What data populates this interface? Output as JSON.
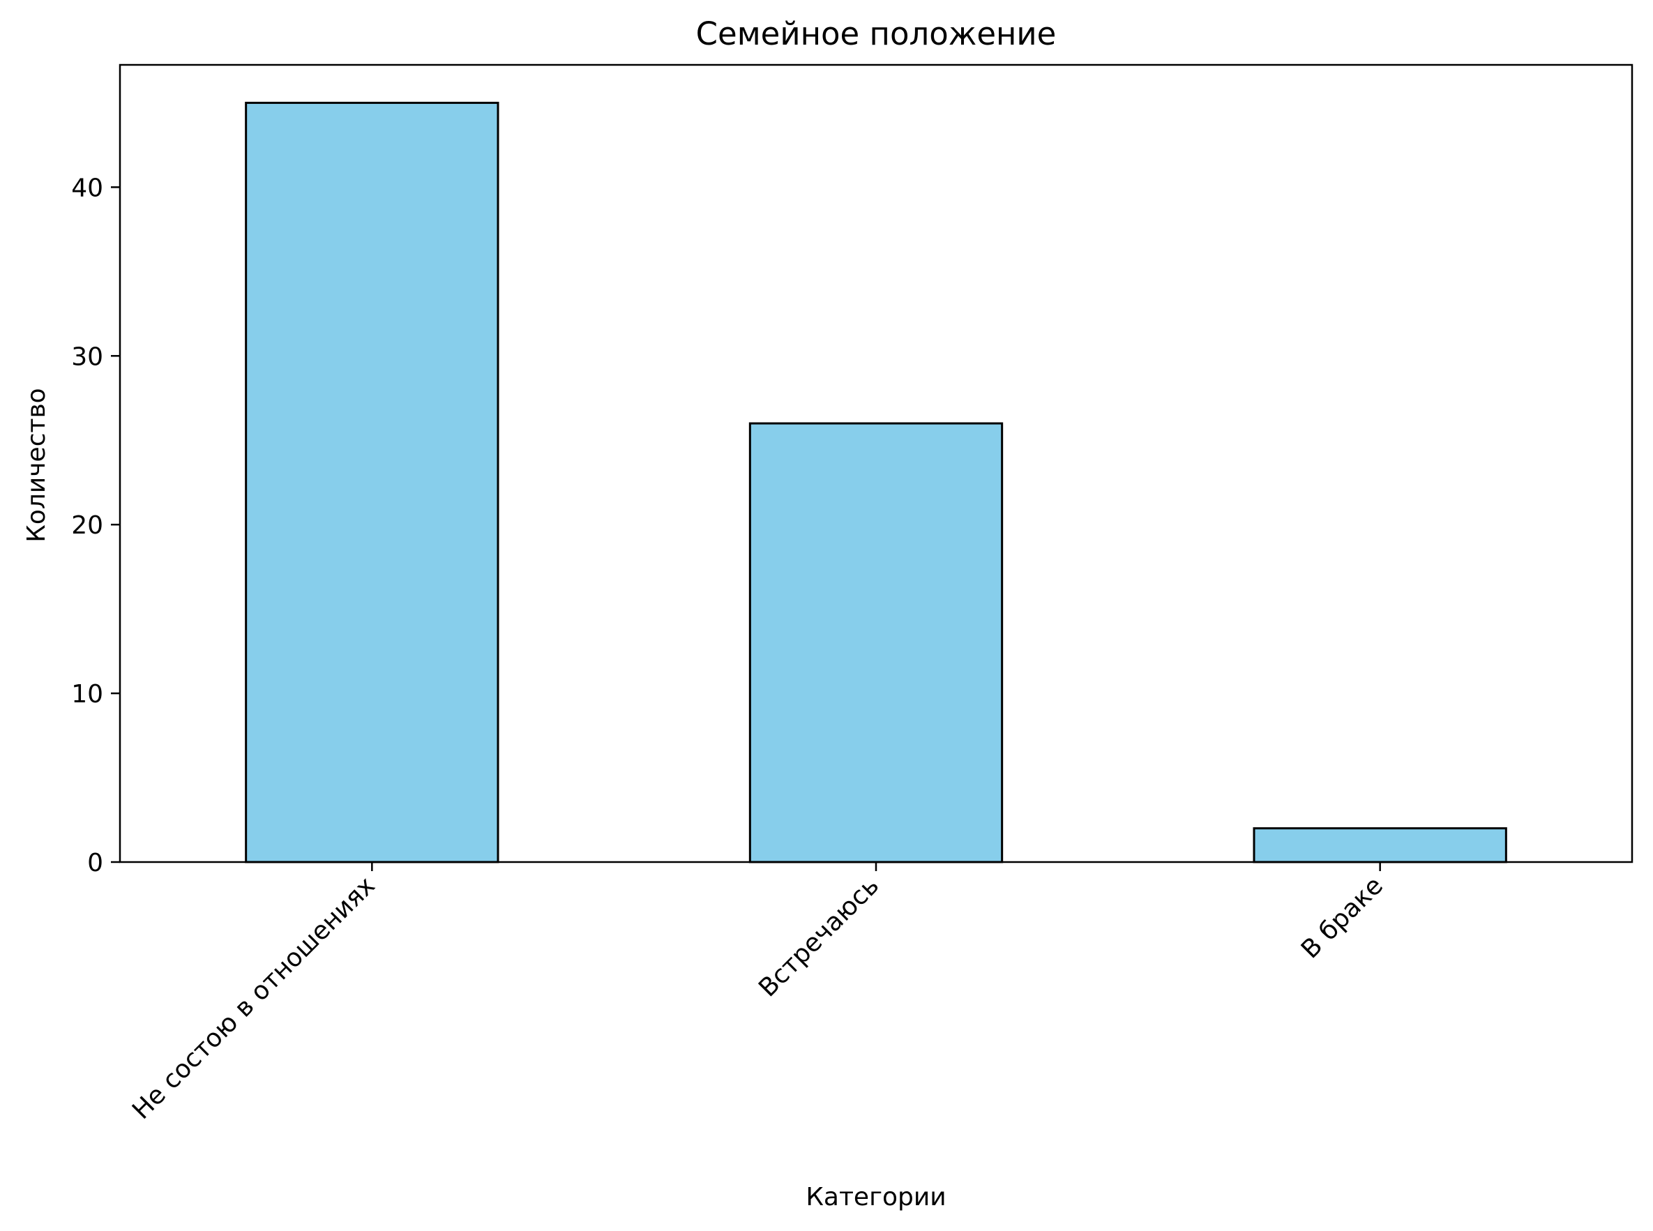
{
  "chart_data": {
    "type": "bar",
    "title": "Семейное положение",
    "xlabel": "Категории",
    "ylabel": "Количество",
    "categories": [
      "Не состою в отношениях",
      "Встречаюсь",
      "В браке"
    ],
    "values": [
      45,
      26,
      2
    ],
    "ylim": [
      0,
      47.25
    ],
    "yticks": [
      0,
      10,
      20,
      30,
      40
    ],
    "ytick_labels": [
      "0",
      "10",
      "20",
      "30",
      "40"
    ],
    "grid": false,
    "legend": "none",
    "bar_color": "#87CEEB",
    "bar_edge_color": "#000000"
  }
}
